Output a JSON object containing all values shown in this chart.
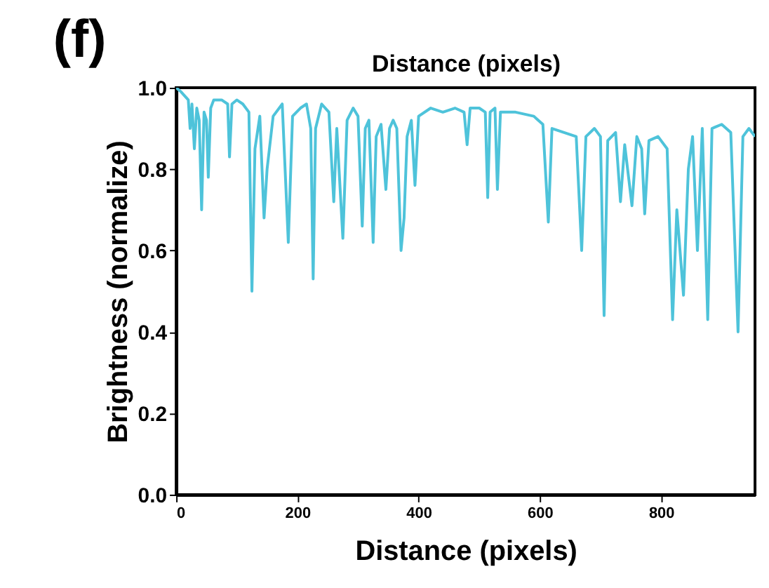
{
  "chart_data": {
    "type": "line",
    "xlabel": "Distance (pixels)",
    "x2label": "Distance (pixels)",
    "ylabel": "Brightness (normalize)",
    "annotations": [
      "(f)"
    ],
    "x": [
      0,
      8,
      14,
      20,
      23,
      26,
      30,
      34,
      38,
      42,
      46,
      50,
      53,
      57,
      62,
      75,
      85,
      88,
      92,
      100,
      110,
      120,
      125,
      130,
      138,
      145,
      150,
      160,
      175,
      185,
      192,
      205,
      215,
      222,
      226,
      230,
      240,
      252,
      260,
      265,
      275,
      282,
      292,
      300,
      307,
      312,
      318,
      325,
      330,
      338,
      346,
      352,
      358,
      364,
      371,
      376,
      381,
      388,
      394,
      400,
      420,
      440,
      460,
      475,
      480,
      485,
      500,
      510,
      514,
      518,
      526,
      530,
      535,
      560,
      590,
      605,
      614,
      620,
      640,
      660,
      669,
      676,
      690,
      700,
      706,
      712,
      725,
      733,
      740,
      752,
      760,
      768,
      773,
      780,
      795,
      810,
      819,
      826,
      837,
      845,
      852,
      860,
      868,
      877,
      884,
      900,
      915,
      927,
      935,
      945,
      955
    ],
    "series": [
      {
        "color": "#4ec3da",
        "values": [
          1.0,
          0.99,
          0.98,
          0.97,
          0.9,
          0.96,
          0.85,
          0.95,
          0.92,
          0.7,
          0.94,
          0.92,
          0.78,
          0.95,
          0.97,
          0.97,
          0.96,
          0.83,
          0.96,
          0.97,
          0.96,
          0.94,
          0.5,
          0.85,
          0.93,
          0.68,
          0.8,
          0.93,
          0.96,
          0.62,
          0.93,
          0.95,
          0.96,
          0.9,
          0.53,
          0.9,
          0.96,
          0.94,
          0.72,
          0.9,
          0.63,
          0.92,
          0.95,
          0.93,
          0.66,
          0.9,
          0.92,
          0.62,
          0.88,
          0.91,
          0.75,
          0.9,
          0.92,
          0.9,
          0.6,
          0.68,
          0.88,
          0.92,
          0.76,
          0.93,
          0.95,
          0.94,
          0.95,
          0.94,
          0.86,
          0.95,
          0.95,
          0.94,
          0.73,
          0.94,
          0.95,
          0.75,
          0.94,
          0.94,
          0.93,
          0.91,
          0.67,
          0.9,
          0.89,
          0.88,
          0.6,
          0.88,
          0.9,
          0.88,
          0.44,
          0.87,
          0.89,
          0.72,
          0.86,
          0.71,
          0.88,
          0.85,
          0.69,
          0.87,
          0.88,
          0.85,
          0.43,
          0.7,
          0.49,
          0.8,
          0.88,
          0.6,
          0.9,
          0.43,
          0.9,
          0.91,
          0.89,
          0.4,
          0.88,
          0.9,
          0.88
        ]
      }
    ],
    "xlim": [
      0,
      955
    ],
    "xticks": [
      0,
      200,
      400,
      600,
      800
    ],
    "ylim": [
      0,
      1
    ],
    "yticks": [
      {
        "value": 0,
        "label": "0.0"
      },
      0.2,
      0.4,
      0.6,
      0.8,
      {
        "value": 1,
        "label": "1.0"
      }
    ],
    "grid": false,
    "line_style": "solid",
    "marker": "none"
  }
}
